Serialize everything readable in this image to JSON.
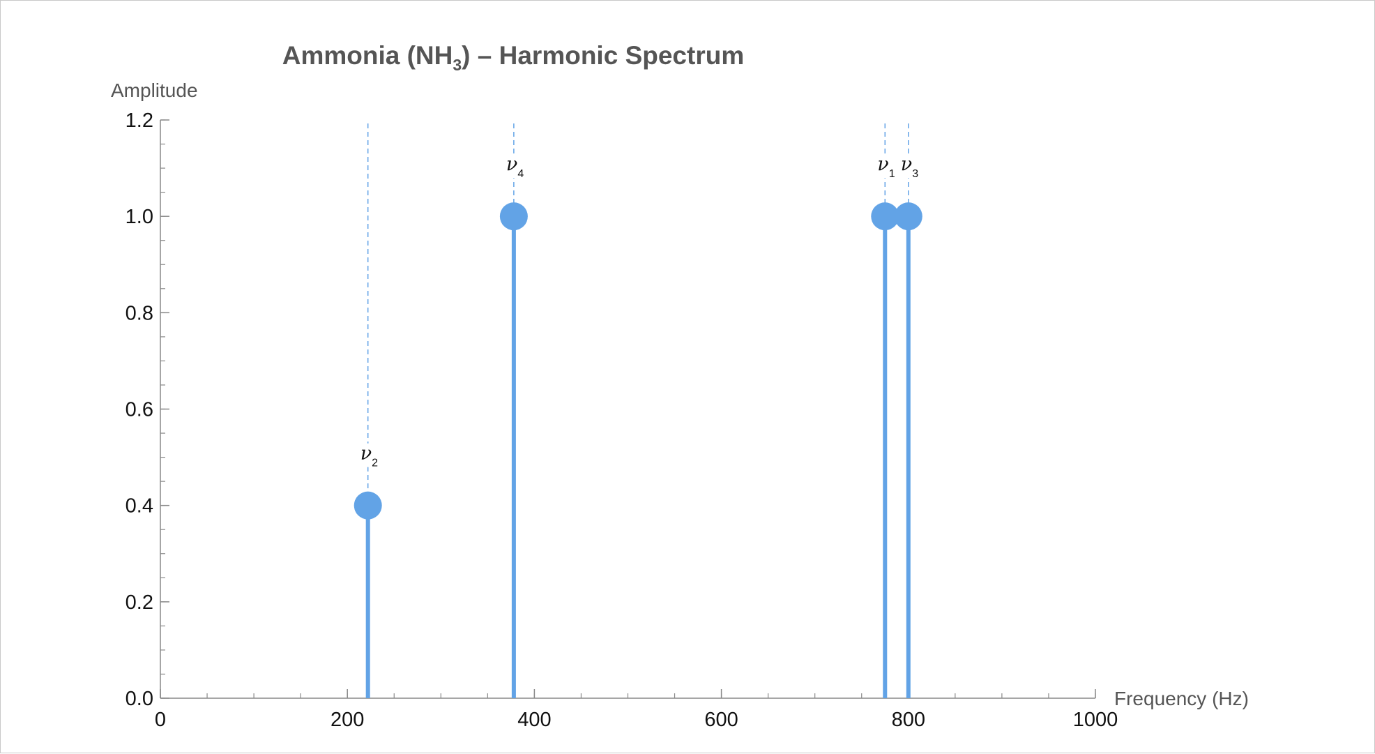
{
  "chart_data": {
    "type": "stem",
    "title": {
      "prefix": "Ammonia (NH",
      "subscript": "3",
      "suffix": ") – Harmonic Spectrum"
    },
    "xlabel": "Frequency (Hz)",
    "ylabel": "Amplitude",
    "xlim": [
      0,
      1000
    ],
    "ylim": [
      0,
      1.2
    ],
    "x_ticks": [
      0,
      200,
      400,
      600,
      800,
      1000
    ],
    "x_tick_labels": [
      "0",
      "200",
      "400",
      "600",
      "800",
      "1000"
    ],
    "y_ticks": [
      0,
      0.2,
      0.4,
      0.6,
      0.8,
      1.0,
      1.2
    ],
    "y_tick_labels": [
      "0.0",
      "0.2",
      "0.4",
      "0.6",
      "0.8",
      "1.0",
      "1.2"
    ],
    "x_minor_step": 50,
    "y_minor_step": 0.05,
    "grid": false,
    "color": "#62a3e6",
    "peaks": [
      {
        "label": "ν",
        "subscript": "2",
        "x": 222,
        "y": 0.4
      },
      {
        "label": "ν",
        "subscript": "4",
        "x": 378,
        "y": 1.0
      },
      {
        "label": "ν",
        "subscript": "1",
        "x": 775,
        "y": 1.0
      },
      {
        "label": "ν",
        "subscript": "3",
        "x": 800,
        "y": 1.0
      }
    ]
  }
}
